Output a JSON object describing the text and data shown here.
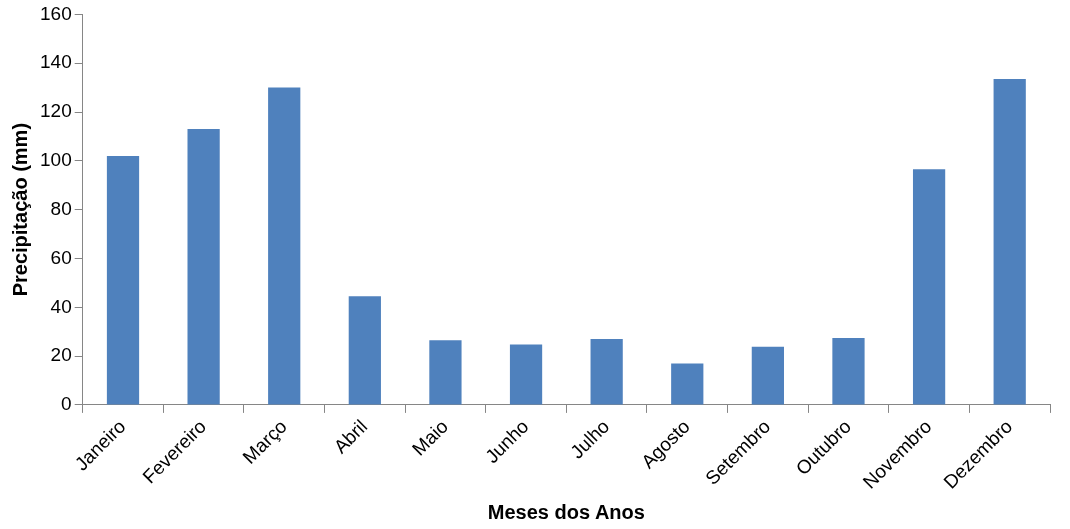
{
  "chart_data": {
    "type": "bar",
    "xlabel": "Meses dos Anos",
    "ylabel": "Precipitação (mm)",
    "categories": [
      "Janeiro",
      "Fevereiro",
      "Março",
      "Abril",
      "Maio",
      "Junho",
      "Julho",
      "Agosto",
      "Setembro",
      "Outubro",
      "Novembro",
      "Dezembro"
    ],
    "values": [
      102,
      113,
      130,
      44.5,
      26.5,
      24.7,
      27,
      17,
      23.8,
      27.4,
      96.6,
      133.5
    ],
    "color": "#4f81bd",
    "ylim": [
      0,
      160
    ],
    "yticks": [
      0,
      20,
      40,
      60,
      80,
      100,
      120,
      140,
      160
    ],
    "grid": false,
    "legend": false
  }
}
